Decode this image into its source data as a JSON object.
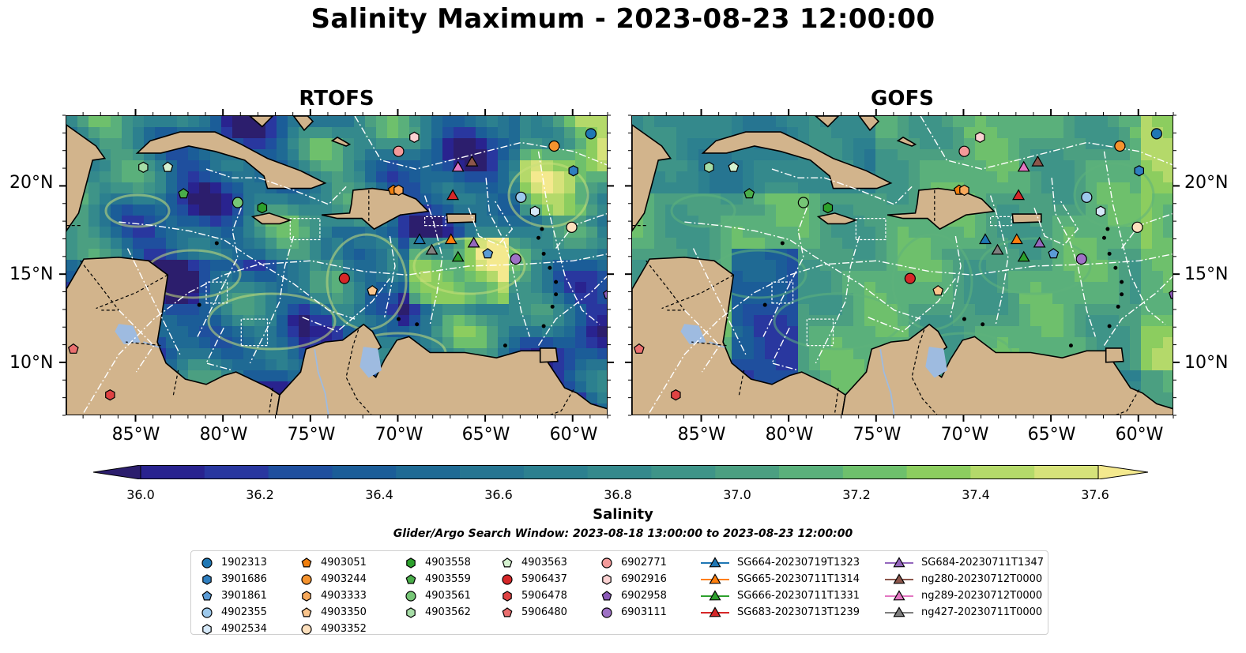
{
  "title": "Salinity Maximum - 2023-08-23 12:00:00",
  "panels": [
    {
      "title": "RTOFS",
      "variant": "rtofs"
    },
    {
      "title": "GOFS",
      "variant": "gofs"
    }
  ],
  "lat_ticks": [
    "20°N",
    "15°N",
    "10°N"
  ],
  "lon_ticks": [
    "85°W",
    "80°W",
    "75°W",
    "70°W",
    "65°W",
    "60°W"
  ],
  "colorbar": {
    "label": "Salinity",
    "ticks": [
      "36.0",
      "36.2",
      "36.4",
      "36.6",
      "36.8",
      "37.0",
      "37.2",
      "37.4",
      "37.6"
    ],
    "min": 36.0,
    "max": 37.6,
    "step": 0.1,
    "colors": [
      "#2c1e6d",
      "#29238f",
      "#29379f",
      "#1f4f9e",
      "#1b5d98",
      "#1f6a94",
      "#267591",
      "#2c808f",
      "#34898c",
      "#3e9488",
      "#4b9f81",
      "#5ab07b",
      "#6ec06c",
      "#8ccd5f",
      "#b4d96a",
      "#d6e27a",
      "#f4e98e"
    ],
    "extend": "both"
  },
  "search_window": "Glider/Argo Search Window: 2023-08-18 13:00:00 to 2023-08-23 12:00:00",
  "map": {
    "land_color": "#d2b48c",
    "lake_color": "#9ebbe0",
    "border_color": "#ffffff",
    "lon_range": [
      -89.0,
      -58.0
    ],
    "lat_range": [
      7.0,
      24.0
    ]
  },
  "legend": [
    {
      "label": "1902313",
      "shape": "circle",
      "color": "#1f77b4",
      "lon": -59.0,
      "lat": 23.0
    },
    {
      "label": "3901686",
      "shape": "hexagon",
      "color": "#2f7fc0",
      "lon": -60.0,
      "lat": 20.9
    },
    {
      "label": "3901861",
      "shape": "pentagon",
      "color": "#5b9bd5",
      "lon": -64.9,
      "lat": 16.2
    },
    {
      "label": "4902355",
      "shape": "circle",
      "color": "#9dc9ec",
      "lon": -63.0,
      "lat": 19.4
    },
    {
      "label": "4902534",
      "shape": "hexagon",
      "color": "#d5e8f8",
      "lon": -62.2,
      "lat": 18.6
    },
    {
      "label": "4903051",
      "shape": "pentagon",
      "color": "#f07f0e",
      "lon": -70.3,
      "lat": 19.8
    },
    {
      "label": "4903244",
      "shape": "circle",
      "color": "#f5932e",
      "lon": -61.1,
      "lat": 22.3
    },
    {
      "label": "4903333",
      "shape": "hexagon",
      "color": "#f7a95b",
      "lon": -70.0,
      "lat": 19.8
    },
    {
      "label": "4903350",
      "shape": "pentagon",
      "color": "#fac58c",
      "lon": -71.5,
      "lat": 14.1
    },
    {
      "label": "4903352",
      "shape": "circle",
      "color": "#fde0bd",
      "lon": -60.1,
      "lat": 17.7
    },
    {
      "label": "4903558",
      "shape": "hexagon",
      "color": "#2ca02c",
      "lon": -77.8,
      "lat": 18.8
    },
    {
      "label": "4903559",
      "shape": "pentagon",
      "color": "#4aae4a",
      "lon": -82.3,
      "lat": 19.6
    },
    {
      "label": "4903561",
      "shape": "circle",
      "color": "#76c676",
      "lon": -79.2,
      "lat": 19.1
    },
    {
      "label": "4903562",
      "shape": "hexagon",
      "color": "#a6dda6",
      "lon": -84.6,
      "lat": 21.1
    },
    {
      "label": "4903563",
      "shape": "pentagon",
      "color": "#d5f2d0",
      "lon": -83.2,
      "lat": 21.1
    },
    {
      "label": "5906437",
      "shape": "circle",
      "color": "#d62728",
      "lon": -73.1,
      "lat": 14.8
    },
    {
      "label": "5906478",
      "shape": "hexagon",
      "color": "#df4243",
      "lon": -86.5,
      "lat": 8.2
    },
    {
      "label": "5906480",
      "shape": "pentagon",
      "color": "#ea6f6f",
      "lon": -88.6,
      "lat": 10.8
    },
    {
      "label": "6902771",
      "shape": "circle",
      "color": "#f39a9a",
      "lon": -70.0,
      "lat": 22.0
    },
    {
      "label": "6902916",
      "shape": "hexagon",
      "color": "#fbd2d2",
      "lon": -69.1,
      "lat": 22.8
    },
    {
      "label": "6902958",
      "shape": "pentagon",
      "color": "#8c5ab8",
      "lon": -58.0,
      "lat": 13.9
    },
    {
      "label": "6903111",
      "shape": "circle",
      "color": "#9e71c5",
      "lon": -63.3,
      "lat": 15.9
    },
    {
      "label": "SG664-20230719T1323",
      "shape": "triangle",
      "color": "#1f77b4",
      "lon": -68.8,
      "lat": 17.0
    },
    {
      "label": "SG665-20230711T1314",
      "shape": "triangle",
      "color": "#ff7f0e",
      "lon": -67.0,
      "lat": 17.0
    },
    {
      "label": "SG666-20230711T1331",
      "shape": "triangle",
      "color": "#2ca02c",
      "lon": -66.6,
      "lat": 16.0
    },
    {
      "label": "SG683-20230713T1239",
      "shape": "triangle",
      "color": "#d62728",
      "lon": -66.9,
      "lat": 19.5
    },
    {
      "label": "SG684-20230711T1347",
      "shape": "triangle",
      "color": "#9467bd",
      "lon": -65.7,
      "lat": 16.8
    },
    {
      "label": "ng280-20230712T0000",
      "shape": "triangle",
      "color": "#8c564b",
      "lon": -65.8,
      "lat": 21.4
    },
    {
      "label": "ng289-20230712T0000",
      "shape": "triangle",
      "color": "#e377c2",
      "lon": -66.6,
      "lat": 21.1
    },
    {
      "label": "ng427-20230711T0000",
      "shape": "triangle",
      "color": "#7f7f7f",
      "lon": -68.1,
      "lat": 16.4
    }
  ]
}
